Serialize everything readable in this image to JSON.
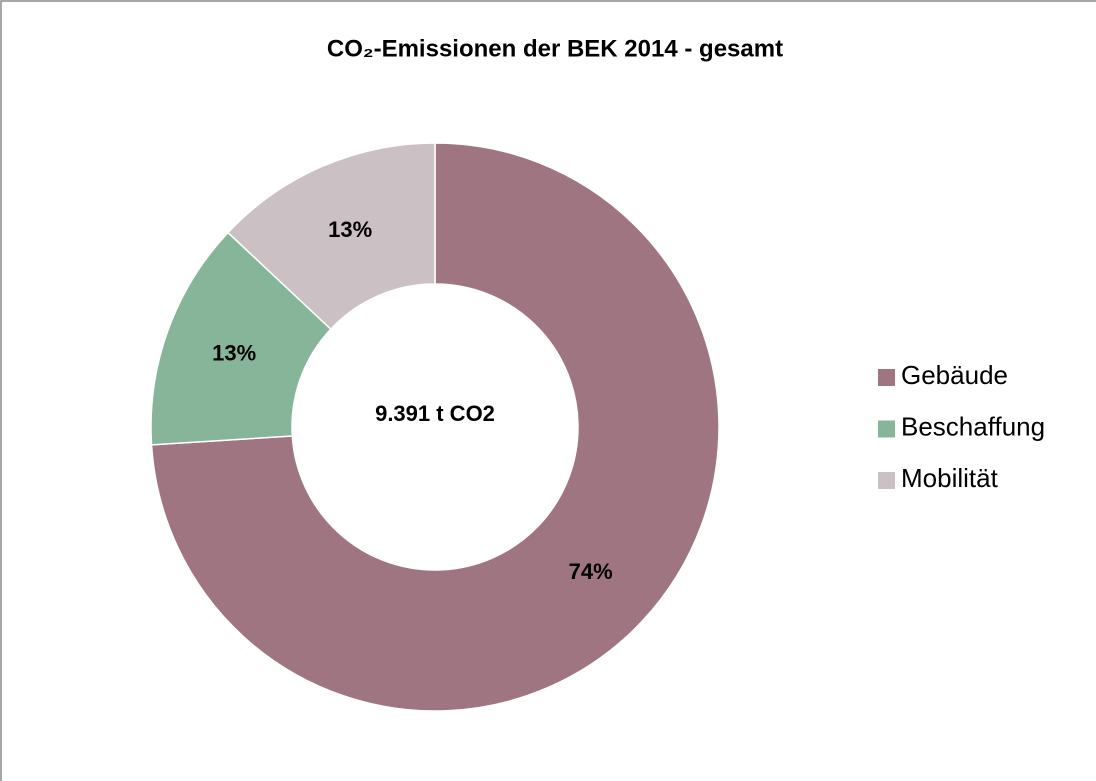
{
  "chart_data": {
    "type": "donut",
    "title": "CO₂-Emissionen der BEK 2014 - gesamt",
    "categories": [
      "Gebäude",
      "Beschaffung",
      "Mobilität"
    ],
    "values": [
      74,
      13,
      13
    ],
    "value_labels": [
      "74%",
      "13%",
      "13%"
    ],
    "colors": [
      "#9e7580",
      "#86b59a",
      "#cbc1c4"
    ],
    "center_label": "9.391 t CO2",
    "legend": "right"
  }
}
